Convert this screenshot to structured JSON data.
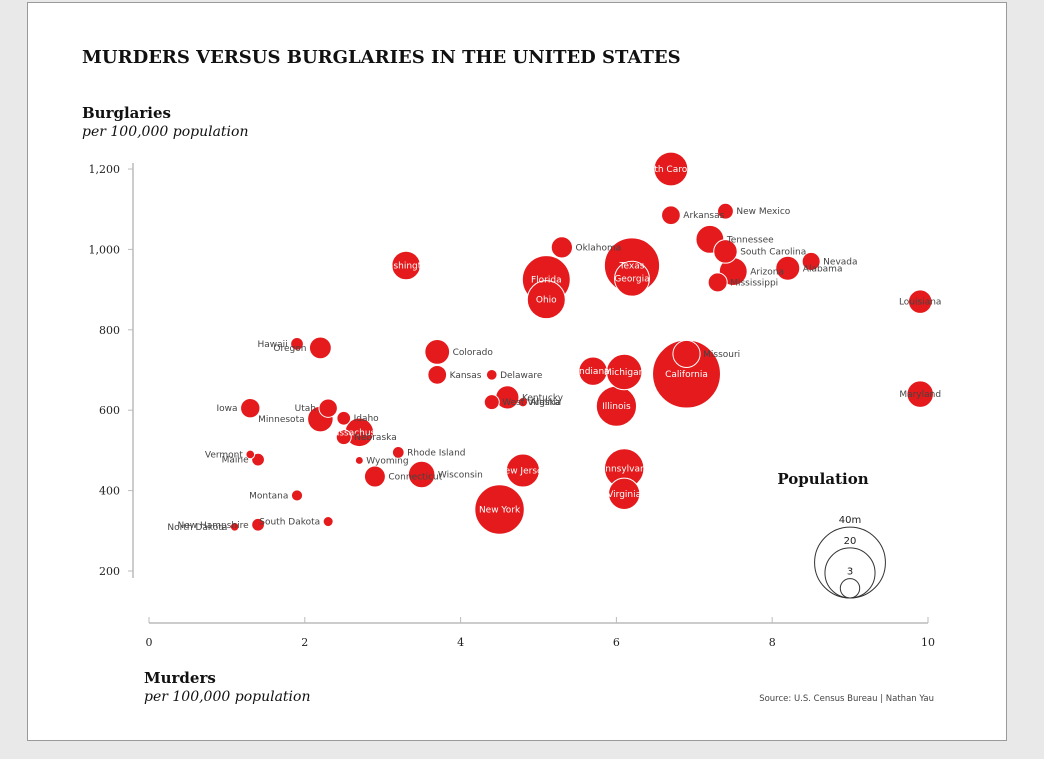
{
  "chart_data": {
    "type": "scatter",
    "title": "MURDERS VERSUS BURGLARIES IN THE UNITED STATES",
    "ylabel": "Burglaries",
    "ylabel_sub": "per 100,000 population",
    "xlabel": "Murders",
    "xlabel_sub": "per 100,000 population",
    "xlim": [
      0,
      10
    ],
    "ylim": [
      200,
      1200
    ],
    "x_ticks": [
      "0",
      "2",
      "4",
      "6",
      "8",
      "10"
    ],
    "y_ticks": [
      "200",
      "400",
      "600",
      "800",
      "1,000",
      "1,200"
    ],
    "source": "Source: U.S. Census Bureau | Nathan Yau",
    "color": "#e41a1c",
    "legend": {
      "title": "Population",
      "labels": [
        "40m",
        "20",
        "3"
      ],
      "values": [
        40,
        20,
        3
      ]
    },
    "points": [
      {
        "state": "North Carolina",
        "murders": 6.7,
        "burglaries": 1200,
        "population": 9.1
      },
      {
        "state": "New Mexico",
        "murders": 7.4,
        "burglaries": 1095,
        "population": 2.0
      },
      {
        "state": "Arkansas",
        "murders": 6.7,
        "burglaries": 1085,
        "population": 2.8
      },
      {
        "state": "Tennessee",
        "murders": 7.2,
        "burglaries": 1025,
        "population": 6.2
      },
      {
        "state": "South Carolina",
        "murders": 7.4,
        "burglaries": 995,
        "population": 4.4
      },
      {
        "state": "Nevada",
        "murders": 8.5,
        "burglaries": 970,
        "population": 2.6
      },
      {
        "state": "Alabama",
        "murders": 8.2,
        "burglaries": 953,
        "population": 4.6
      },
      {
        "state": "Arizona",
        "murders": 7.5,
        "burglaries": 945,
        "population": 6.2
      },
      {
        "state": "Mississippi",
        "murders": 7.3,
        "burglaries": 918,
        "population": 2.9
      },
      {
        "state": "Texas",
        "murders": 6.2,
        "burglaries": 960,
        "population": 24.3
      },
      {
        "state": "Georgia",
        "murders": 6.2,
        "burglaries": 927,
        "population": 9.7
      },
      {
        "state": "Oklahoma",
        "murders": 5.3,
        "burglaries": 1005,
        "population": 3.6
      },
      {
        "state": "Florida",
        "murders": 5.1,
        "burglaries": 925,
        "population": 18.3
      },
      {
        "state": "Ohio",
        "murders": 5.1,
        "burglaries": 875,
        "population": 11.5
      },
      {
        "state": "Washington",
        "murders": 3.3,
        "burglaries": 960,
        "population": 6.5
      },
      {
        "state": "Louisiana",
        "murders": 9.9,
        "burglaries": 870,
        "population": 4.4
      },
      {
        "state": "Hawaii",
        "murders": 1.9,
        "burglaries": 765,
        "population": 1.3
      },
      {
        "state": "Oregon",
        "murders": 2.2,
        "burglaries": 755,
        "population": 3.8
      },
      {
        "state": "Colorado",
        "murders": 3.7,
        "burglaries": 745,
        "population": 4.9
      },
      {
        "state": "Kansas",
        "murders": 3.7,
        "burglaries": 688,
        "population": 2.8
      },
      {
        "state": "Indiana",
        "murders": 5.7,
        "burglaries": 697,
        "population": 6.4
      },
      {
        "state": "Michigan",
        "murders": 6.1,
        "burglaries": 695,
        "population": 10.0
      },
      {
        "state": "Missouri",
        "murders": 6.9,
        "burglaries": 740,
        "population": 5.9
      },
      {
        "state": "California",
        "murders": 6.9,
        "burglaries": 690,
        "population": 36.8
      },
      {
        "state": "Delaware",
        "murders": 4.4,
        "burglaries": 688,
        "population": 0.9
      },
      {
        "state": "Kentucky",
        "murders": 4.6,
        "burglaries": 632,
        "population": 4.3
      },
      {
        "state": "Alaska",
        "murders": 4.8,
        "burglaries": 620,
        "population": 0.7
      },
      {
        "state": "West Virginia",
        "murders": 4.4,
        "burglaries": 620,
        "population": 1.8
      },
      {
        "state": "Illinois",
        "murders": 6.0,
        "burglaries": 610,
        "population": 12.9
      },
      {
        "state": "Maryland",
        "murders": 9.9,
        "burglaries": 640,
        "population": 5.6
      },
      {
        "state": "Iowa",
        "murders": 1.3,
        "burglaries": 605,
        "population": 3.0
      },
      {
        "state": "Utah",
        "murders": 2.3,
        "burglaries": 605,
        "population": 2.7
      },
      {
        "state": "Idaho",
        "murders": 2.5,
        "burglaries": 580,
        "population": 1.5
      },
      {
        "state": "Minnesota",
        "murders": 2.2,
        "burglaries": 578,
        "population": 5.2
      },
      {
        "state": "Massachusetts",
        "murders": 2.7,
        "burglaries": 545,
        "population": 6.5
      },
      {
        "state": "Nebraska",
        "murders": 2.5,
        "burglaries": 533,
        "population": 1.8
      },
      {
        "state": "Vermont",
        "murders": 1.3,
        "burglaries": 490,
        "population": 0.6
      },
      {
        "state": "Maine",
        "murders": 1.4,
        "burglaries": 477,
        "population": 1.3
      },
      {
        "state": "Rhode Island",
        "murders": 3.2,
        "burglaries": 495,
        "population": 1.1
      },
      {
        "state": "Wyoming",
        "murders": 2.7,
        "burglaries": 475,
        "population": 0.5
      },
      {
        "state": "Connecticut",
        "murders": 2.9,
        "burglaries": 435,
        "population": 3.5
      },
      {
        "state": "Wisconsin",
        "murders": 3.5,
        "burglaries": 440,
        "population": 5.6
      },
      {
        "state": "New Jersey",
        "murders": 4.8,
        "burglaries": 450,
        "population": 8.7
      },
      {
        "state": "Pennsylvania",
        "murders": 6.1,
        "burglaries": 455,
        "population": 12.4
      },
      {
        "state": "Virginia",
        "murders": 6.1,
        "burglaries": 392,
        "population": 7.8
      },
      {
        "state": "New York",
        "murders": 4.5,
        "burglaries": 353,
        "population": 19.5
      },
      {
        "state": "Montana",
        "murders": 1.9,
        "burglaries": 388,
        "population": 1.0
      },
      {
        "state": "South Dakota",
        "murders": 2.3,
        "burglaries": 323,
        "population": 0.8
      },
      {
        "state": "North Dakota",
        "murders": 1.1,
        "burglaries": 310,
        "population": 0.6
      },
      {
        "state": "New Hampshire",
        "murders": 1.4,
        "burglaries": 315,
        "population": 1.3
      }
    ]
  }
}
